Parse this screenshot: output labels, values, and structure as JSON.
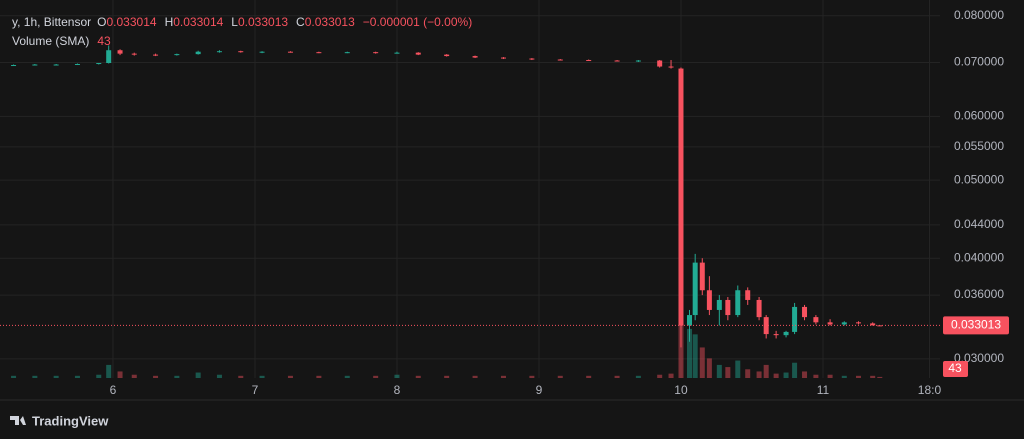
{
  "chart_data": {
    "type": "candlestick",
    "legend_title": "y, 1h, Bittensor",
    "ohlc_labels": [
      "O",
      "H",
      "L",
      "C"
    ],
    "ohlc_values": [
      0.033014,
      0.033014,
      0.033013,
      0.033013
    ],
    "change": "−0.000001 (−0.00%)",
    "volume_label": "Volume (SMA)",
    "volume_sma": 43,
    "last_price": 0.033013,
    "brand": "TradingView",
    "up_color": "#22ab94",
    "down_color": "#f7525f",
    "log_scale": true,
    "grid": true,
    "xlim": [
      5.275,
      11.824
    ],
    "xticks": [
      6,
      7,
      8,
      9,
      10,
      11,
      {
        "value": 11.75,
        "label": "18:0"
      }
    ],
    "ylim": [
      0.0284,
      0.0837
    ],
    "yticks": [
      {
        "value": 0.08,
        "label": "0.080000"
      },
      {
        "value": 0.07,
        "label": "0.070000"
      },
      {
        "value": 0.06,
        "label": "0.060000"
      },
      {
        "value": 0.055,
        "label": "0.055000"
      },
      {
        "value": 0.05,
        "label": "0.050000"
      },
      {
        "value": 0.044,
        "label": "0.044000"
      },
      {
        "value": 0.04,
        "label": "0.040000"
      },
      {
        "value": 0.036,
        "label": "0.036000"
      },
      {
        "value": 0.03,
        "label": "0.030000"
      }
    ],
    "x": [
      5.3,
      5.45,
      5.6,
      5.75,
      5.9,
      5.97,
      6.05,
      6.15,
      6.3,
      6.45,
      6.6,
      6.75,
      6.9,
      7.05,
      7.25,
      7.45,
      7.65,
      7.85,
      8.0,
      8.15,
      8.35,
      8.55,
      8.75,
      8.95,
      9.15,
      9.35,
      9.55,
      9.7,
      9.85,
      9.93,
      10.0,
      10.06,
      10.1,
      10.15,
      10.2,
      10.27,
      10.33,
      10.4,
      10.47,
      10.55,
      10.6,
      10.67,
      10.74,
      10.8,
      10.87,
      10.95,
      11.05,
      11.15,
      11.25,
      11.35,
      11.4
    ],
    "open": [
      0.0695,
      0.0695,
      0.0696,
      0.0696,
      0.0697,
      0.0699,
      0.0725,
      0.0718,
      0.0716,
      0.0715,
      0.0717,
      0.0722,
      0.0723,
      0.0721,
      0.0722,
      0.0721,
      0.072,
      0.0721,
      0.0719,
      0.072,
      0.0716,
      0.0713,
      0.071,
      0.0708,
      0.0706,
      0.0705,
      0.0704,
      0.0703,
      0.0704,
      0.0692,
      0.0688,
      0.033,
      0.034,
      0.0395,
      0.0365,
      0.0345,
      0.0355,
      0.034,
      0.0365,
      0.0355,
      0.0338,
      0.0322,
      0.0321,
      0.0324,
      0.0348,
      0.0338,
      0.0333,
      0.0331,
      0.0333,
      0.0332,
      0.033014
    ],
    "high": [
      0.0696,
      0.0697,
      0.0697,
      0.0698,
      0.0699,
      0.0735,
      0.0727,
      0.072,
      0.0718,
      0.0718,
      0.0724,
      0.0725,
      0.0724,
      0.0723,
      0.0723,
      0.0722,
      0.0722,
      0.0722,
      0.0722,
      0.0721,
      0.0717,
      0.0714,
      0.0711,
      0.0709,
      0.0707,
      0.0706,
      0.0705,
      0.0705,
      0.0705,
      0.0705,
      0.069,
      0.0345,
      0.0405,
      0.04,
      0.038,
      0.036,
      0.0358,
      0.037,
      0.0368,
      0.0358,
      0.034,
      0.0325,
      0.0325,
      0.0352,
      0.035,
      0.034,
      0.0336,
      0.0334,
      0.0334,
      0.0333,
      0.033014
    ],
    "low": [
      0.0694,
      0.0694,
      0.0695,
      0.0695,
      0.0696,
      0.0698,
      0.0715,
      0.0714,
      0.0713,
      0.0714,
      0.0716,
      0.072,
      0.072,
      0.0719,
      0.072,
      0.0719,
      0.0719,
      0.0718,
      0.0718,
      0.0715,
      0.0712,
      0.0709,
      0.0707,
      0.0705,
      0.0704,
      0.0703,
      0.0702,
      0.0701,
      0.069,
      0.0688,
      0.031,
      0.0315,
      0.0335,
      0.036,
      0.034,
      0.033,
      0.0335,
      0.0338,
      0.035,
      0.0335,
      0.0318,
      0.0318,
      0.0319,
      0.0322,
      0.0335,
      0.0331,
      0.033,
      0.033,
      0.0331,
      0.033,
      0.033013
    ],
    "close": [
      0.0695,
      0.0696,
      0.0696,
      0.0697,
      0.0699,
      0.0725,
      0.0718,
      0.0716,
      0.0715,
      0.0717,
      0.0722,
      0.0723,
      0.0721,
      0.0722,
      0.0721,
      0.072,
      0.0721,
      0.0719,
      0.072,
      0.0716,
      0.0713,
      0.071,
      0.0708,
      0.0706,
      0.0705,
      0.0704,
      0.0703,
      0.0704,
      0.0692,
      0.069,
      0.033,
      0.034,
      0.0395,
      0.0365,
      0.0345,
      0.0355,
      0.034,
      0.0365,
      0.0355,
      0.0338,
      0.0322,
      0.0321,
      0.0324,
      0.0348,
      0.0338,
      0.0333,
      0.0331,
      0.0333,
      0.0332,
      0.033014,
      0.033013
    ],
    "volume": [
      2,
      2,
      2,
      2,
      3,
      12,
      6,
      3,
      2,
      2,
      5,
      3,
      2,
      2,
      2,
      2,
      2,
      2,
      3,
      2,
      2,
      2,
      2,
      2,
      2,
      2,
      2,
      2,
      3,
      4,
      55,
      45,
      40,
      28,
      18,
      12,
      10,
      16,
      8,
      6,
      12,
      4,
      5,
      14,
      6,
      3,
      3,
      2,
      2,
      2,
      1
    ]
  }
}
